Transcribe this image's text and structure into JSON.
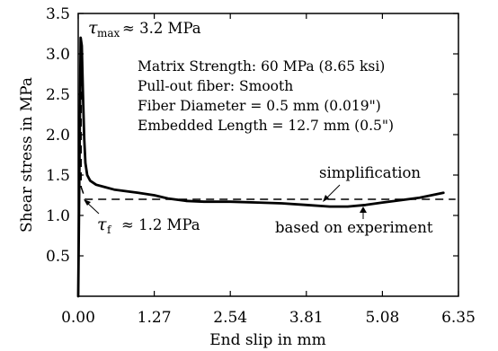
{
  "chart_data": {
    "type": "line",
    "xlabel": "End slip in mm",
    "ylabel": "Shear stress in MPa",
    "xlim": [
      0,
      6.35
    ],
    "ylim": [
      0,
      3.5
    ],
    "x_ticks": [
      "0.00",
      "1.27",
      "2.54",
      "3.81",
      "5.08",
      "6.35"
    ],
    "y_ticks": [
      "0.5",
      "1.0",
      "1.5",
      "2.0",
      "2.5",
      "3.0",
      "3.5"
    ],
    "grid": false,
    "info_lines": [
      "Matrix Strength: 60 MPa (8.65 ksi)",
      "Pull-out fiber: Smooth",
      "Fiber Diameter = 0.5 mm (0.019\")",
      "Embedded Length = 12.7 mm (0.5\")"
    ],
    "annotations": {
      "tau_max": {
        "symbol": "τ",
        "subscript": "max",
        "text": "≈ 3.2 MPa",
        "x": 0.05,
        "y": 3.2
      },
      "tau_f": {
        "symbol": "τ",
        "subscript": "f",
        "text": "≈ 1.2 MPa",
        "x": 0.1,
        "y": 1.2
      },
      "simplification": "simplification",
      "experiment": "based on experiment"
    },
    "series": [
      {
        "name": "based on experiment",
        "style": "solid",
        "x": [
          0.0,
          0.02,
          0.04,
          0.06,
          0.08,
          0.1,
          0.12,
          0.15,
          0.2,
          0.3,
          0.45,
          0.6,
          0.8,
          1.0,
          1.27,
          1.5,
          1.8,
          2.1,
          2.54,
          3.0,
          3.4,
          3.81,
          4.2,
          4.5,
          4.8,
          5.08,
          5.4,
          5.7,
          6.1
        ],
        "y": [
          0.0,
          1.5,
          3.2,
          3.1,
          2.5,
          1.95,
          1.65,
          1.5,
          1.43,
          1.38,
          1.35,
          1.32,
          1.3,
          1.28,
          1.25,
          1.21,
          1.18,
          1.17,
          1.17,
          1.16,
          1.15,
          1.13,
          1.11,
          1.11,
          1.13,
          1.16,
          1.19,
          1.22,
          1.28
        ]
      },
      {
        "name": "simplification",
        "style": "dashed",
        "x": [
          0.05,
          0.05,
          0.12,
          6.3
        ],
        "y": [
          3.2,
          1.35,
          1.2,
          1.2
        ]
      }
    ]
  }
}
